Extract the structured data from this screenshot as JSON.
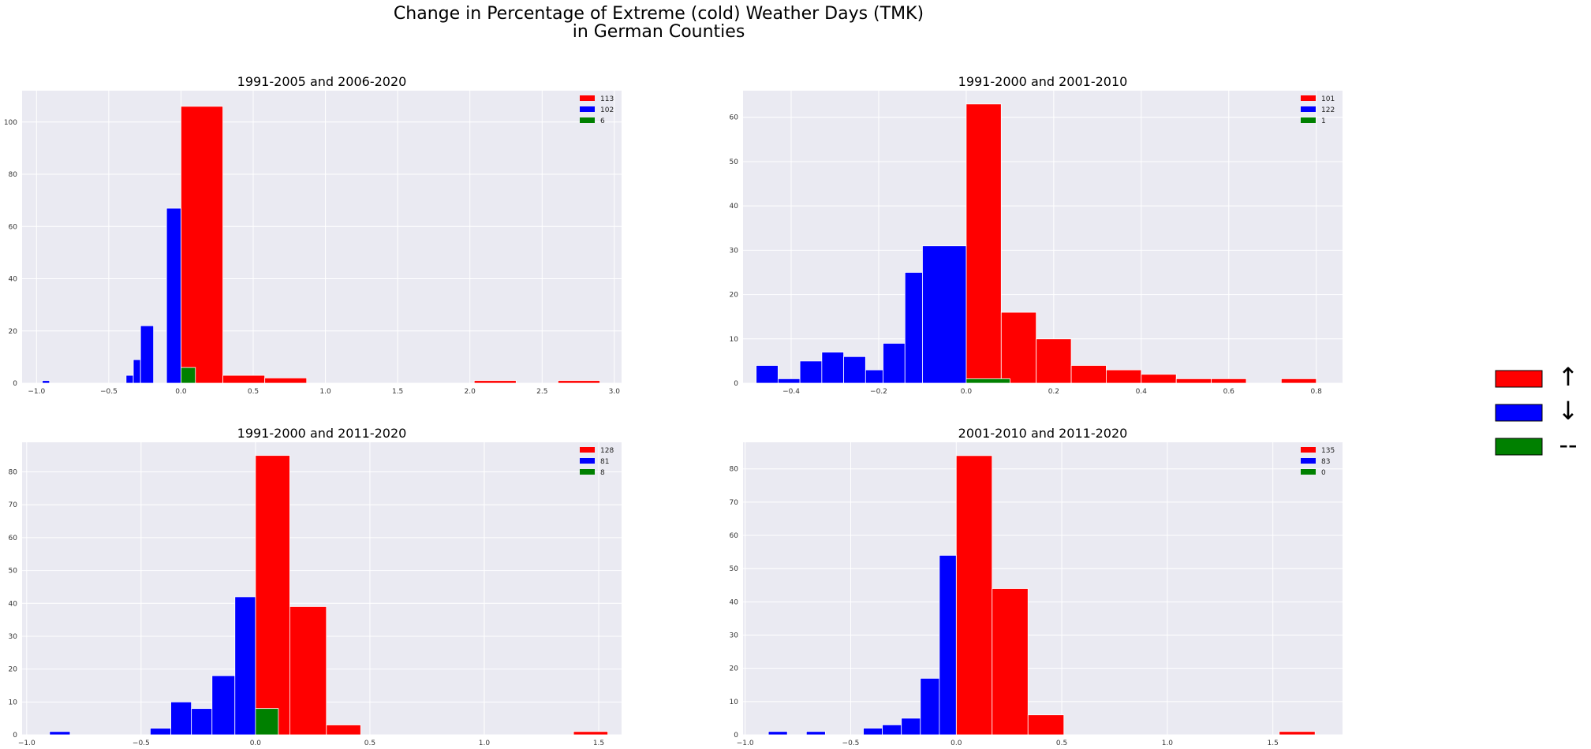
{
  "figure": {
    "title_line1": "Change in Percentage of Extreme (cold) Weather Days (TMK)",
    "title_line2": "in German Counties"
  },
  "colors": {
    "up": "#ff0000",
    "down": "#0000ff",
    "flat": "#008000"
  },
  "side_legend": [
    {
      "color": "#ff0000",
      "symbol": "↑",
      "icon": "arrow-up-icon"
    },
    {
      "color": "#0000ff",
      "symbol": "↓",
      "icon": "arrow-down-icon"
    },
    {
      "color": "#008000",
      "symbol": "--",
      "icon": "dash-icon"
    }
  ],
  "chart_data": [
    {
      "type": "bar",
      "title": "1991-2005 and 2006-2020",
      "xlim": [
        -1.1,
        3.05
      ],
      "ylim": [
        0,
        112
      ],
      "xticks": [
        -1.0,
        -0.5,
        0.0,
        0.5,
        1.0,
        1.5,
        2.0,
        2.5,
        3.0
      ],
      "xtick_labels": [
        "−1.0",
        "−0.5",
        "0.0",
        "0.5",
        "1.0",
        "1.5",
        "2.0",
        "2.5",
        "3.0"
      ],
      "yticks": [
        0,
        20,
        40,
        60,
        80,
        100
      ],
      "legend": [
        "113",
        "102",
        "6"
      ],
      "series": [
        {
          "name": "up",
          "bins": [
            [
              0.0,
              0.29,
              106
            ],
            [
              0.29,
              0.58,
              3
            ],
            [
              0.58,
              0.87,
              2
            ],
            [
              2.03,
              2.32,
              1
            ],
            [
              2.61,
              2.9,
              1
            ]
          ]
        },
        {
          "name": "down",
          "bins": [
            [
              -0.96,
              -0.91,
              1
            ],
            [
              -0.38,
              -0.33,
              3
            ],
            [
              -0.33,
              -0.28,
              9
            ],
            [
              -0.28,
              -0.19,
              22
            ],
            [
              -0.1,
              0.0,
              67
            ]
          ]
        },
        {
          "name": "flat",
          "bins": [
            [
              0.0,
              0.1,
              6
            ]
          ]
        }
      ]
    },
    {
      "type": "bar",
      "title": "1991-2000 and 2001-2010",
      "xlim": [
        -0.51,
        0.86
      ],
      "ylim": [
        0,
        66
      ],
      "xticks": [
        -0.4,
        -0.2,
        0.0,
        0.2,
        0.4,
        0.6,
        0.8
      ],
      "xtick_labels": [
        "−0.4",
        "−0.2",
        "0.0",
        "0.2",
        "0.4",
        "0.6",
        "0.8"
      ],
      "yticks": [
        0,
        10,
        20,
        30,
        40,
        50,
        60
      ],
      "legend": [
        "101",
        "122",
        "1"
      ],
      "series": [
        {
          "name": "up",
          "bins": [
            [
              0.0,
              0.08,
              63
            ],
            [
              0.08,
              0.16,
              16
            ],
            [
              0.16,
              0.24,
              10
            ],
            [
              0.24,
              0.32,
              4
            ],
            [
              0.32,
              0.4,
              3
            ],
            [
              0.4,
              0.48,
              2
            ],
            [
              0.48,
              0.56,
              1
            ],
            [
              0.56,
              0.64,
              1
            ],
            [
              0.72,
              0.8,
              1
            ]
          ]
        },
        {
          "name": "down",
          "bins": [
            [
              -0.48,
              -0.43,
              4
            ],
            [
              -0.43,
              -0.38,
              1
            ],
            [
              -0.38,
              -0.33,
              5
            ],
            [
              -0.33,
              -0.28,
              7
            ],
            [
              -0.28,
              -0.23,
              6
            ],
            [
              -0.23,
              -0.19,
              3
            ],
            [
              -0.19,
              -0.14,
              9
            ],
            [
              -0.14,
              -0.1,
              25
            ],
            [
              -0.1,
              0.0,
              31
            ]
          ]
        },
        {
          "name": "flat",
          "bins": [
            [
              0.0,
              0.1,
              1
            ]
          ]
        }
      ]
    },
    {
      "type": "bar",
      "title": "1991-2000 and 2011-2020",
      "xlim": [
        -1.02,
        1.6
      ],
      "ylim": [
        0,
        89
      ],
      "xticks": [
        -1.0,
        -0.5,
        0.0,
        0.5,
        1.0,
        1.5
      ],
      "xtick_labels": [
        "−1.0",
        "−0.5",
        "0.0",
        "0.5",
        "1.0",
        "1.5"
      ],
      "yticks": [
        0,
        10,
        20,
        30,
        40,
        50,
        60,
        70,
        80
      ],
      "legend": [
        "128",
        "81",
        "8"
      ],
      "series": [
        {
          "name": "up",
          "bins": [
            [
              0.0,
              0.15,
              85
            ],
            [
              0.15,
              0.31,
              39
            ],
            [
              0.31,
              0.46,
              3
            ],
            [
              1.39,
              1.54,
              1
            ]
          ]
        },
        {
          "name": "down",
          "bins": [
            [
              -0.9,
              -0.81,
              1
            ],
            [
              -0.46,
              -0.37,
              2
            ],
            [
              -0.37,
              -0.28,
              10
            ],
            [
              -0.28,
              -0.19,
              8
            ],
            [
              -0.19,
              -0.09,
              18
            ],
            [
              -0.09,
              0.0,
              42
            ]
          ]
        },
        {
          "name": "flat",
          "bins": [
            [
              0.0,
              0.1,
              8
            ]
          ]
        }
      ]
    },
    {
      "type": "bar",
      "title": "2001-2010 and 2011-2020",
      "xlim": [
        -1.01,
        1.83
      ],
      "ylim": [
        0,
        88
      ],
      "xticks": [
        -1.0,
        -0.5,
        0.0,
        0.5,
        1.0,
        1.5
      ],
      "xtick_labels": [
        "−1.0",
        "−0.5",
        "0.0",
        "0.5",
        "1.0",
        "1.5"
      ],
      "yticks": [
        0,
        10,
        20,
        30,
        40,
        50,
        60,
        70,
        80
      ],
      "legend": [
        "135",
        "83",
        "0"
      ],
      "series": [
        {
          "name": "up",
          "bins": [
            [
              0.0,
              0.17,
              84
            ],
            [
              0.17,
              0.34,
              44
            ],
            [
              0.34,
              0.51,
              6
            ],
            [
              1.53,
              1.7,
              1
            ]
          ]
        },
        {
          "name": "down",
          "bins": [
            [
              -0.89,
              -0.8,
              1
            ],
            [
              -0.71,
              -0.62,
              1
            ],
            [
              -0.44,
              -0.35,
              2
            ],
            [
              -0.35,
              -0.26,
              3
            ],
            [
              -0.26,
              -0.17,
              5
            ],
            [
              -0.17,
              -0.08,
              17
            ],
            [
              -0.08,
              0.0,
              54
            ]
          ]
        },
        {
          "name": "flat",
          "bins": []
        }
      ]
    }
  ]
}
